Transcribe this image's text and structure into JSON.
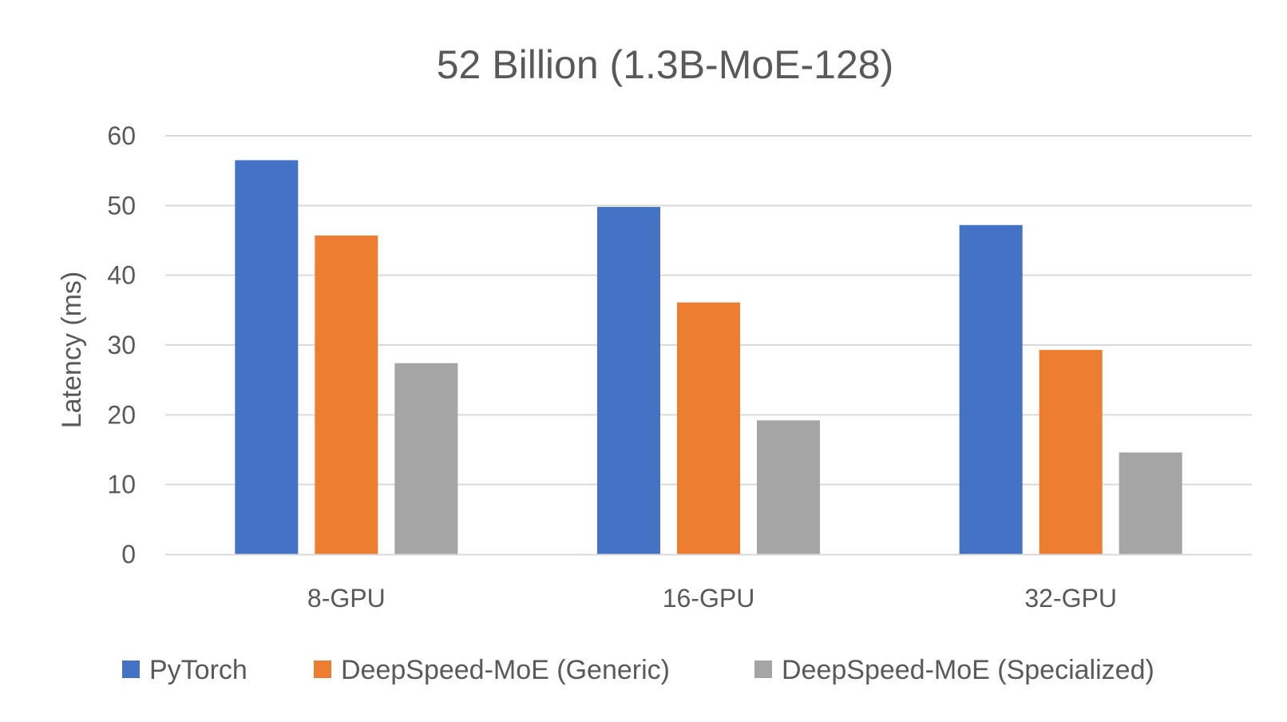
{
  "chart_data": {
    "type": "bar",
    "title": "52 Billion (1.3B-MoE-128)",
    "xlabel": "",
    "ylabel": "Latency (ms)",
    "ylim": [
      0,
      60
    ],
    "yticks": [
      0,
      10,
      20,
      30,
      40,
      50,
      60
    ],
    "grid": true,
    "legend_position": "bottom",
    "categories": [
      "8-GPU",
      "16-GPU",
      "32-GPU"
    ],
    "series": [
      {
        "name": "PyTorch",
        "color": "#4472C4",
        "values": [
          56.5,
          49.8,
          47.2
        ]
      },
      {
        "name": "DeepSpeed-MoE (Generic)",
        "color": "#ED7D31",
        "values": [
          45.7,
          36.1,
          29.3
        ]
      },
      {
        "name": "DeepSpeed-MoE (Specialized)",
        "color": "#A5A5A5",
        "values": [
          27.4,
          19.2,
          14.6
        ]
      }
    ]
  }
}
